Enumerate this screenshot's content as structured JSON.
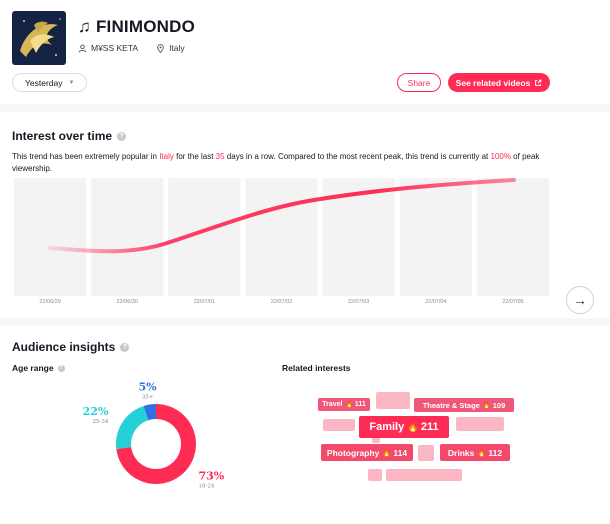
{
  "header": {
    "title": "FINIMONDO",
    "artist": "M¥SS KETA",
    "country": "Italy",
    "period": "Yesterday",
    "share_label": "Share",
    "related_label": "See related videos"
  },
  "interest": {
    "title": "Interest over time",
    "desc_prefix": "This trend has been extremely popular in ",
    "desc_country": "Italy",
    "desc_mid1": " for the last ",
    "desc_days": "35",
    "desc_mid2": " days in a row. Compared to the most recent peak, this trend is currently at ",
    "desc_pct": "100%",
    "desc_suffix": " of peak viewership."
  },
  "chart_data": {
    "type": "line",
    "x": [
      "22/06/29",
      "22/06/30",
      "22/07/01",
      "22/07/02",
      "22/07/03",
      "22/07/04",
      "22/07/05"
    ],
    "title": "",
    "xlabel": "",
    "ylabel": "",
    "grid": false,
    "accent": "#fe2c55"
  },
  "audience": {
    "title": "Audience insights",
    "age_title": "Age range",
    "related_title": "Related interests",
    "age_chart": {
      "type": "pie",
      "categories": [
        "18-24",
        "25-34",
        "35+"
      ],
      "values": [
        73,
        22,
        5
      ],
      "labels": [
        "73%",
        "22%",
        "5%"
      ],
      "colors": [
        "#fe2c55",
        "#25d0d8",
        "#2f6fe4"
      ]
    },
    "interests": [
      {
        "label": "Travel",
        "score": "111"
      },
      {
        "label": "Theatre & Stage",
        "score": "109"
      },
      {
        "label": "Family",
        "score": "211"
      },
      {
        "label": "Photography",
        "score": "114"
      },
      {
        "label": "Drinks",
        "score": "112"
      }
    ]
  }
}
